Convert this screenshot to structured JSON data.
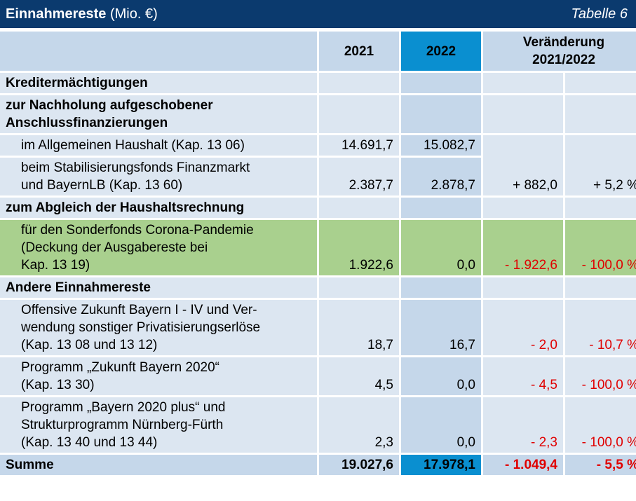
{
  "title": {
    "bold": "Einnahmereste",
    "unit": " (Mio. €)",
    "table_no": "Tabelle 6"
  },
  "header": {
    "y2021": "2021",
    "y2022": "2022",
    "change": "Veränderung",
    "change_years": "2021/2022"
  },
  "sections": {
    "kredit": "Kreditermächtigungen",
    "nachholung_1": "zur Nachholung aufgeschobener",
    "nachholung_2": "Anschlussfinanzierungen",
    "abgleich": "zum Abgleich der Haushaltsrechnung",
    "andere": "Andere Einnahmereste"
  },
  "rows": [
    {
      "lines": [
        "im Allgemeinen Haushalt (Kap. 13 06)"
      ],
      "v2021": "14.691,7",
      "v2022": "15.082,7",
      "chg": "",
      "pct": ""
    },
    {
      "lines": [
        "beim Stabilisierungsfonds Finanzmarkt",
        "und BayernLB (Kap. 13 60)"
      ],
      "v2021": "2.387,7",
      "v2022": "2.878,7",
      "chg": "+ 882,0",
      "pct": "+ 5,2 %"
    },
    {
      "lines": [
        "für den Sonderfonds Corona-Pandemie",
        "(Deckung der Ausgabereste bei",
        "Kap. 13 19)"
      ],
      "v2021": "1.922,6",
      "v2022": "0,0",
      "chg": "- 1.922,6",
      "pct": "- 100,0 %"
    },
    {
      "lines": [
        "Offensive Zukunft Bayern I - IV und Ver-",
        "wendung sonstiger Privatisierungserlöse",
        "(Kap. 13 08 und 13 12)"
      ],
      "v2021": "18,7",
      "v2022": "16,7",
      "chg": "- 2,0",
      "pct": "- 10,7 %"
    },
    {
      "lines": [
        "Programm „Zukunft Bayern 2020“",
        "(Kap. 13 30)"
      ],
      "v2021": "4,5",
      "v2022": "0,0",
      "chg": "- 4,5",
      "pct": "- 100,0 %"
    },
    {
      "lines": [
        "Programm „Bayern 2020 plus“ und",
        "Strukturprogramm Nürnberg-Fürth",
        "(Kap. 13 40 und 13 44)"
      ],
      "v2021": "2,3",
      "v2022": "0,0",
      "chg": "- 2,3",
      "pct": "- 100,0 %"
    }
  ],
  "sum": {
    "label": "Summe",
    "v2021": "19.027,6",
    "v2022": "17.978,1",
    "chg": "- 1.049,4",
    "pct": "- 5,5 %"
  },
  "colors": {
    "title_bg": "#0b3a6e",
    "cell_bg": "#dce6f1",
    "col2022_bg": "#c5d7ea",
    "highlight_2022": "#0a8fd0",
    "green_row": "#a9d08e",
    "negative": "#e00000"
  }
}
